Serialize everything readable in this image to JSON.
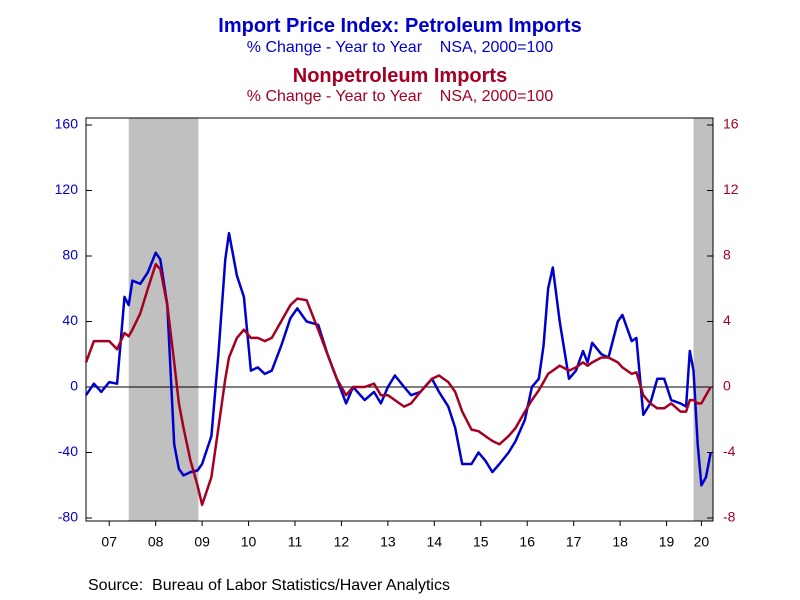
{
  "chart_data": {
    "type": "line",
    "title": "Import Price Index: Petroleum Imports",
    "subtitle": "% Change - Year to Year    NSA, 2000=100",
    "title2": "Nonpetroleum Imports",
    "subtitle2": "% Change - Year to Year    NSA, 2000=100",
    "source": "Source:  Bureau of Labor Statistics/Haver Analytics",
    "x": [
      2007.0,
      2007.17,
      2007.33,
      2007.5,
      2007.67,
      2007.83,
      2007.92,
      2008.0,
      2008.17,
      2008.33,
      2008.5,
      2008.6,
      2008.75,
      2008.9,
      2009.0,
      2009.1,
      2009.25,
      2009.4,
      2009.5,
      2009.7,
      2009.85,
      2010.0,
      2010.08,
      2010.25,
      2010.4,
      2010.55,
      2010.7,
      2010.85,
      2011.0,
      2011.2,
      2011.4,
      2011.55,
      2011.75,
      2012.0,
      2012.2,
      2012.4,
      2012.6,
      2012.75,
      2013.0,
      2013.2,
      2013.35,
      2013.5,
      2013.65,
      2013.85,
      2014.0,
      2014.2,
      2014.45,
      2014.6,
      2014.8,
      2014.95,
      2015.1,
      2015.3,
      2015.45,
      2015.6,
      2015.75,
      2015.9,
      2016.1,
      2016.25,
      2016.45,
      2016.6,
      2016.75,
      2016.85,
      2016.95,
      2017.05,
      2017.2,
      2017.4,
      2017.55,
      2017.7,
      2017.8,
      2017.9,
      2018.1,
      2018.25,
      2018.45,
      2018.55,
      2018.75,
      2018.85,
      2019.0,
      2019.15,
      2019.3,
      2019.45,
      2019.6,
      2019.8,
      2019.92,
      2020.0,
      2020.08,
      2020.17,
      2020.25,
      2020.35,
      2020.45
    ],
    "series": [
      {
        "color": "#0000cc",
        "values": [
          -5,
          2,
          -3,
          3,
          2,
          55,
          50,
          65,
          63,
          70,
          82,
          78,
          50,
          -35,
          -50,
          -54,
          -52,
          -51,
          -47,
          -30,
          20,
          78,
          94,
          68,
          55,
          10,
          12,
          8,
          10,
          25,
          42,
          48,
          40,
          38,
          20,
          5,
          -10,
          0,
          -8,
          -3,
          -10,
          0,
          7,
          0,
          -5,
          -3,
          5,
          -3,
          -12,
          -25,
          -47,
          -47,
          -40,
          -45,
          -52,
          -47,
          -40,
          -33,
          -20,
          0,
          5,
          25,
          60,
          73,
          40,
          5,
          10,
          22,
          15,
          27,
          20,
          18,
          40,
          44,
          28,
          30,
          -17,
          -10,
          5,
          5,
          -8,
          -10,
          -12,
          22,
          10,
          -35,
          -60,
          -55,
          -40
        ]
      },
      {
        "color": "#a50021",
        "axis": "y2",
        "values": [
          1.5,
          2.8,
          2.8,
          2.8,
          2.3,
          3.3,
          3.1,
          3.5,
          4.5,
          6.0,
          7.5,
          7.2,
          5.0,
          1.5,
          -1.0,
          -2.5,
          -4.5,
          -6.0,
          -7.2,
          -5.5,
          -2.5,
          0.5,
          1.8,
          3.0,
          3.5,
          3.0,
          3.0,
          2.8,
          3.0,
          4.0,
          5.0,
          5.4,
          5.3,
          3.5,
          2.0,
          0.5,
          -0.5,
          0,
          0,
          0.2,
          -0.5,
          -0.5,
          -0.8,
          -1.2,
          -1.0,
          -0.3,
          0.5,
          0.7,
          0.3,
          -0.3,
          -1.5,
          -2.6,
          -2.7,
          -3.0,
          -3.3,
          -3.5,
          -3.0,
          -2.5,
          -1.5,
          -0.8,
          -0.2,
          0.3,
          0.8,
          1.0,
          1.3,
          1.0,
          1.2,
          1.5,
          1.3,
          1.5,
          1.8,
          1.8,
          1.5,
          1.2,
          0.8,
          0.9,
          -0.5,
          -1.0,
          -1.3,
          -1.3,
          -1.0,
          -1.5,
          -1.5,
          -0.8,
          -0.8,
          -1.0,
          -1.0,
          -0.5,
          0.0
        ]
      }
    ],
    "recessions": [
      [
        2007.92,
        2009.42
      ],
      [
        2020.08,
        2020.5
      ]
    ],
    "recession_color": "#c0c0c0",
    "xlim": [
      2007,
      2020.5
    ],
    "xticks": [
      {
        "value": 2007.5,
        "label": "07"
      },
      {
        "value": 2008.5,
        "label": "08"
      },
      {
        "value": 2009.5,
        "label": "09"
      },
      {
        "value": 2010.5,
        "label": "10"
      },
      {
        "value": 2011.5,
        "label": "11"
      },
      {
        "value": 2012.5,
        "label": "12"
      },
      {
        "value": 2013.5,
        "label": "13"
      },
      {
        "value": 2014.5,
        "label": "14"
      },
      {
        "value": 2015.5,
        "label": "15"
      },
      {
        "value": 2016.5,
        "label": "16"
      },
      {
        "value": 2017.5,
        "label": "17"
      },
      {
        "value": 2018.5,
        "label": "18"
      },
      {
        "value": 2019.5,
        "label": "19"
      },
      {
        "value": 2020.25,
        "label": "20"
      }
    ],
    "ylim": [
      -80,
      160
    ],
    "yticks": [
      -80,
      -40,
      0,
      40,
      80,
      120,
      160
    ],
    "y2lim": [
      -8,
      16
    ],
    "y2ticks": [
      -8,
      -4,
      0,
      4,
      8,
      12,
      16
    ]
  }
}
